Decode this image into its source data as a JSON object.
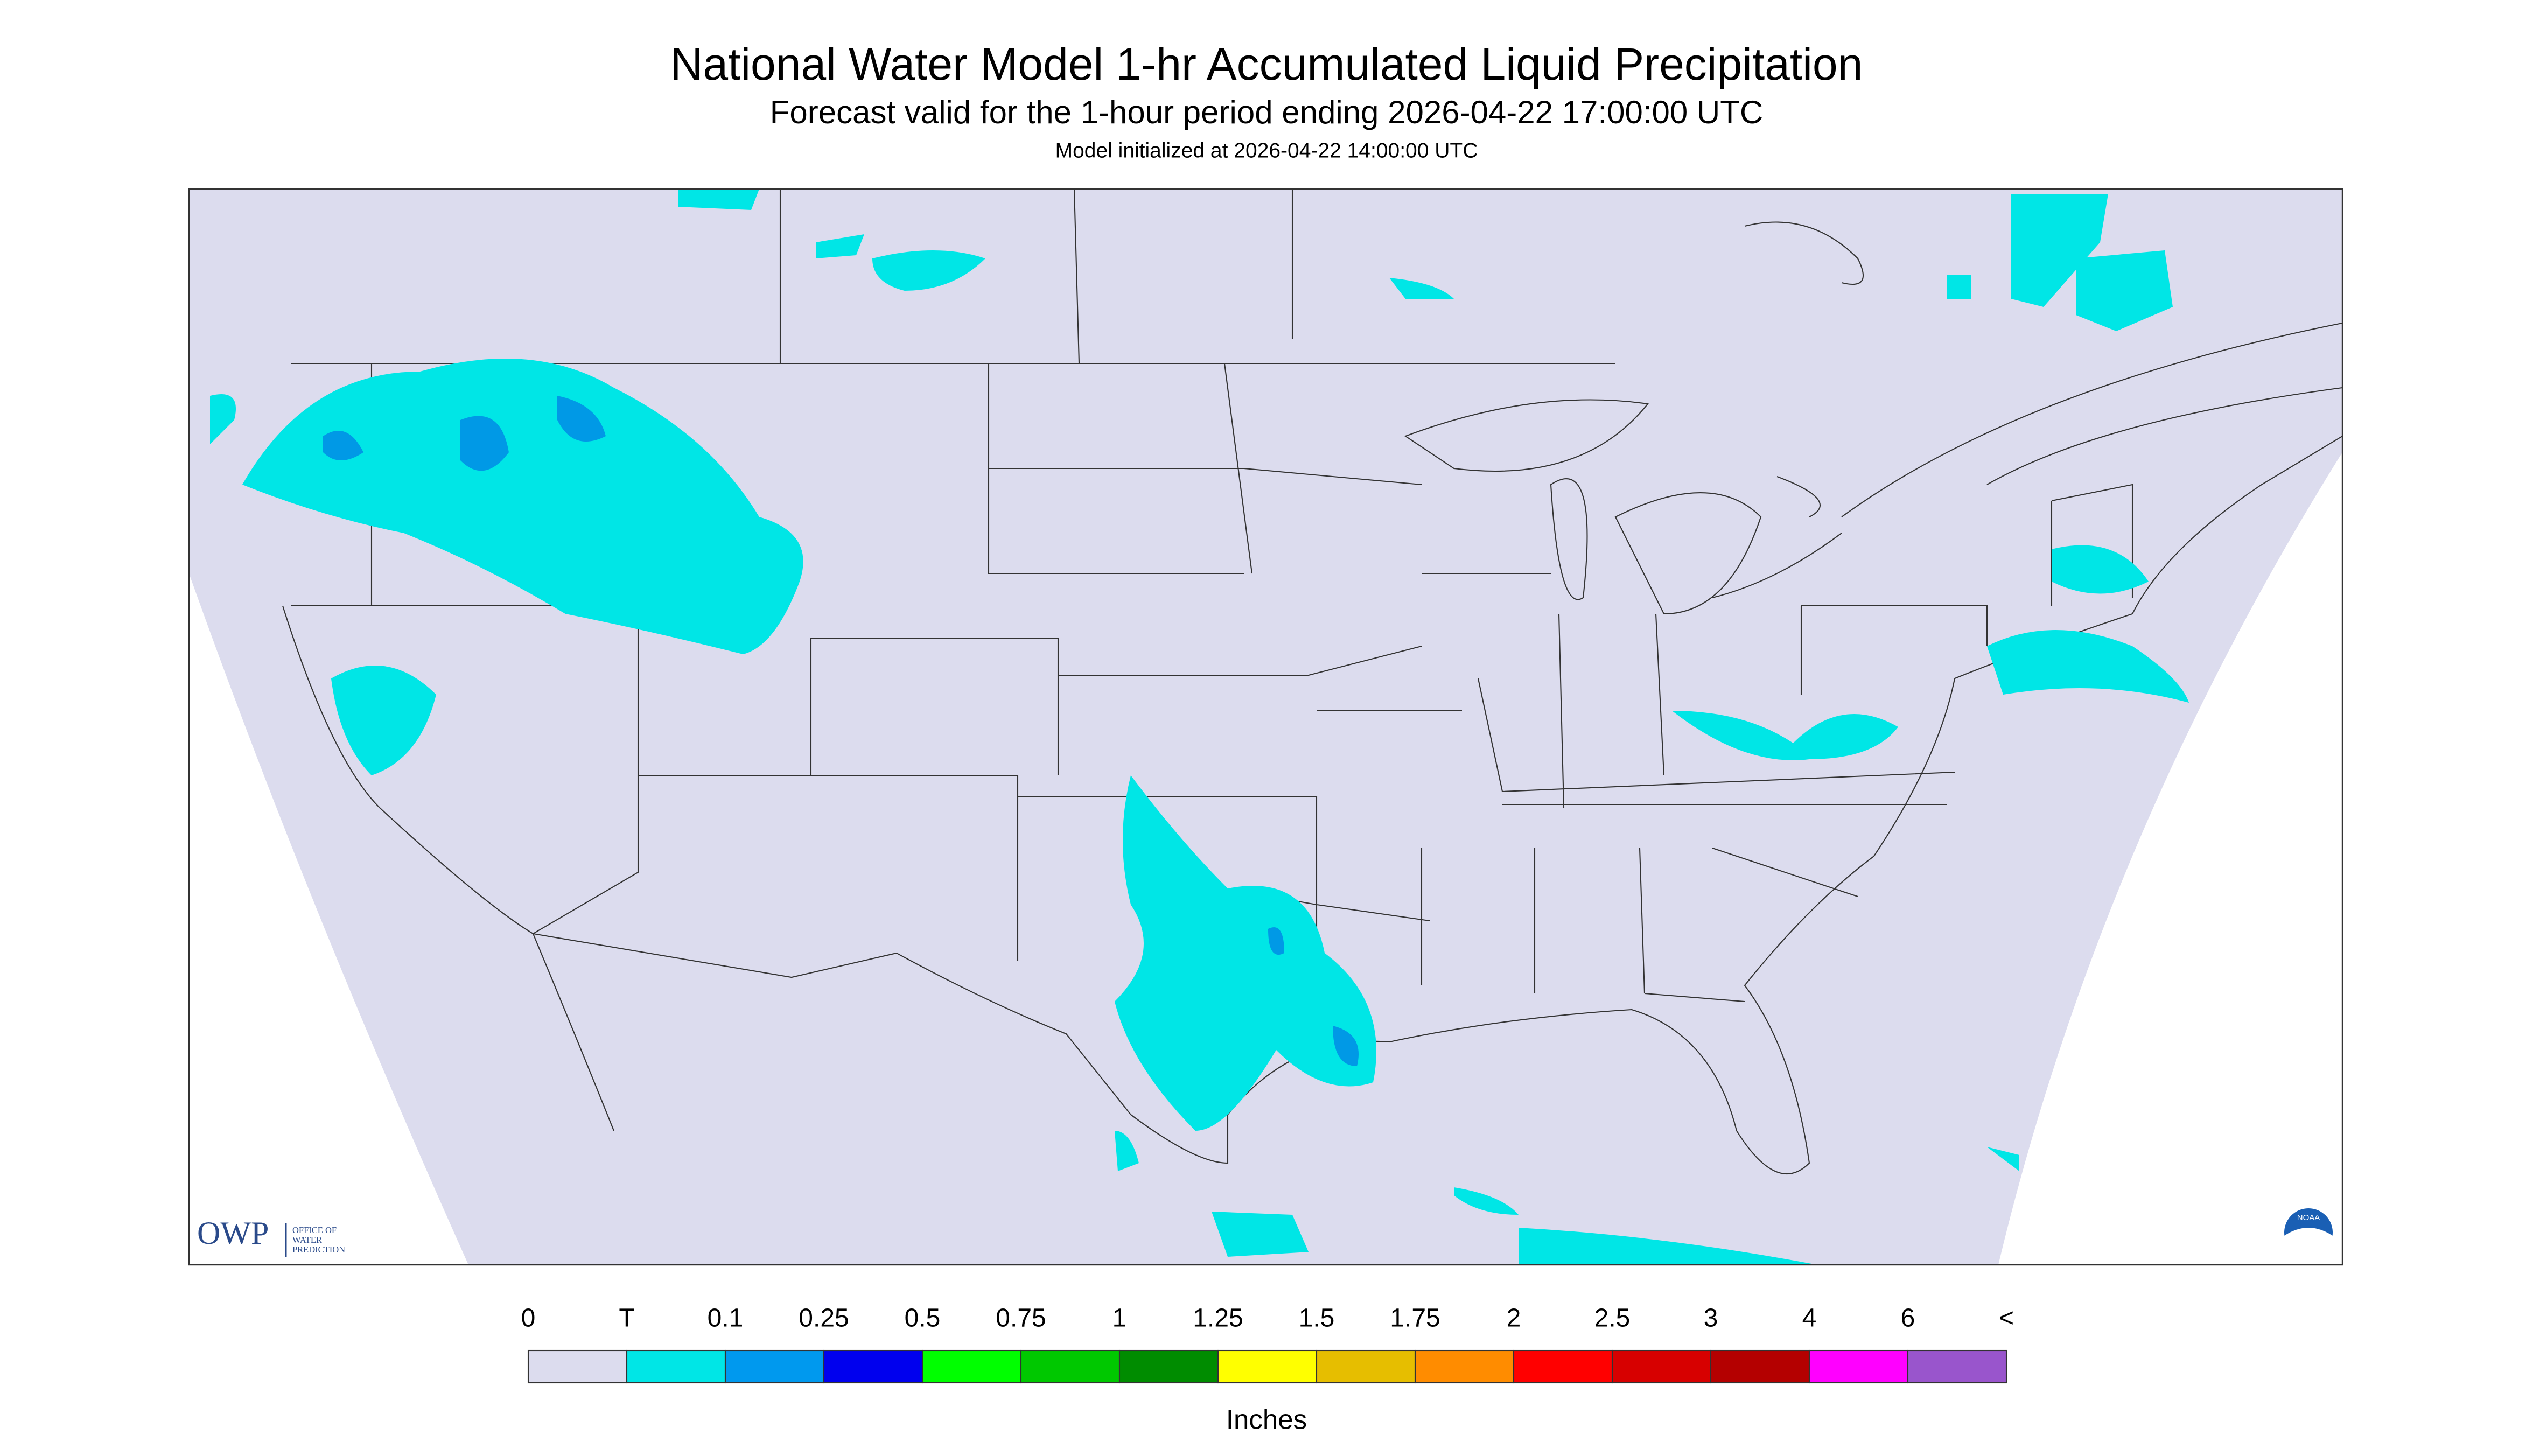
{
  "header": {
    "title": "National Water Model 1-hr Accumulated Liquid Precipitation",
    "subtitle": "Forecast valid for the 1-hour period ending 2026-04-22 17:00:00 UTC",
    "init": "Model initialized at 2026-04-22 14:00:00 UTC"
  },
  "legend": {
    "labels": [
      "0",
      "T",
      "0.1",
      "0.25",
      "0.5",
      "0.75",
      "1",
      "1.25",
      "1.5",
      "1.75",
      "2",
      "2.5",
      "3",
      "4",
      "6",
      "<"
    ],
    "colors": [
      "#dcdcee",
      "#00e6e6",
      "#0099ee",
      "#0000ee",
      "#00ff00",
      "#00c800",
      "#008c00",
      "#ffff00",
      "#e6be00",
      "#ff8c00",
      "#ff0000",
      "#d70000",
      "#b40000",
      "#ff00ff",
      "#9955cc"
    ],
    "units": "Inches"
  },
  "logos": {
    "owp": "OWP",
    "owp_lines": [
      "OFFICE OF",
      "WATER",
      "PREDICTION"
    ],
    "noaa": "NOAA"
  }
}
